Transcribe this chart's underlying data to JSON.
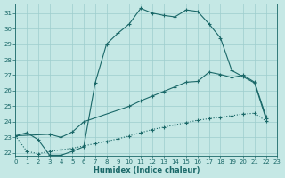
{
  "xlabel": "Humidex (Indice chaleur)",
  "xlim": [
    0,
    23
  ],
  "ylim": [
    21.8,
    31.6
  ],
  "yticks": [
    22,
    23,
    24,
    25,
    26,
    27,
    28,
    29,
    30,
    31
  ],
  "xticks": [
    0,
    1,
    2,
    3,
    4,
    5,
    6,
    7,
    8,
    9,
    10,
    11,
    12,
    13,
    14,
    15,
    16,
    17,
    18,
    19,
    20,
    21,
    22,
    23
  ],
  "bg_color": "#c5e8e5",
  "grid_color": "#9ecece",
  "line_color": "#1a6868",
  "line1_x": [
    0,
    1,
    2,
    3,
    4,
    5,
    6,
    7,
    8,
    9,
    10,
    11,
    12,
    13,
    14,
    15,
    16,
    17,
    18,
    19,
    20,
    21,
    22
  ],
  "line1_y": [
    23.1,
    23.3,
    22.85,
    21.85,
    21.85,
    22.1,
    22.4,
    26.5,
    29.0,
    29.7,
    30.3,
    31.3,
    31.0,
    30.85,
    30.75,
    31.2,
    31.1,
    30.3,
    29.4,
    27.3,
    26.9,
    26.5,
    24.2
  ],
  "line2_x": [
    0,
    3,
    4,
    5,
    6,
    10,
    11,
    12,
    13,
    14,
    15,
    16,
    17,
    18,
    19,
    20,
    21,
    22
  ],
  "line2_y": [
    23.1,
    23.2,
    23.0,
    23.35,
    24.0,
    25.0,
    25.35,
    25.65,
    25.95,
    26.25,
    26.55,
    26.6,
    27.2,
    27.05,
    26.85,
    27.0,
    26.55,
    24.35
  ],
  "line3_x": [
    0,
    1,
    2,
    3,
    4,
    5,
    6,
    7,
    8,
    9,
    10,
    11,
    12,
    13,
    14,
    15,
    16,
    17,
    18,
    19,
    20,
    21,
    22
  ],
  "line3_y": [
    23.1,
    22.1,
    21.95,
    22.1,
    22.2,
    22.3,
    22.45,
    22.6,
    22.75,
    22.9,
    23.1,
    23.3,
    23.5,
    23.65,
    23.8,
    23.95,
    24.1,
    24.2,
    24.3,
    24.4,
    24.5,
    24.55,
    24.05
  ]
}
